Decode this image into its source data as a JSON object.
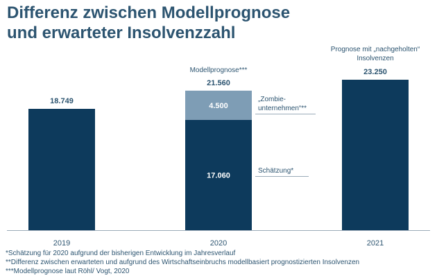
{
  "title_lines": [
    "Differenz zwischen Modellprognose",
    "und erwarteter Insolvenzzahl"
  ],
  "colors": {
    "dark": "#0d3a5c",
    "light": "#7e9db5",
    "text": "#2c5470",
    "axis": "#9aaab8"
  },
  "chart_data": {
    "type": "bar",
    "stacked": true,
    "categories": [
      "2019",
      "2020",
      "2021"
    ],
    "series": [
      {
        "name": "Schätzung*",
        "values": [
          18749,
          17060,
          23250
        ]
      },
      {
        "name": "„Zombie-unternehmen“**",
        "values": [
          null,
          4500,
          null
        ]
      }
    ],
    "value_labels": [
      {
        "category": "2019",
        "text": "18.749",
        "position": "top"
      },
      {
        "category": "2020",
        "text": "21.560",
        "position": "top"
      },
      {
        "category": "2020",
        "text": "4.500",
        "position": "center-segment-2"
      },
      {
        "category": "2020",
        "text": "17.060",
        "position": "center-segment-1"
      },
      {
        "category": "2021",
        "text": "23.250",
        "position": "top"
      }
    ],
    "annotations": [
      {
        "category": "2020",
        "text": "Modellprognose***",
        "position": "above"
      },
      {
        "category": "2021",
        "lines": [
          "Prognose mit „nachgeholten“",
          "Insolvenzen"
        ],
        "position": "above"
      },
      {
        "category": "2020",
        "lines": [
          "„Zombie-",
          "unternehmen“**"
        ],
        "position": "right-of-segment-2"
      },
      {
        "category": "2020",
        "text": "Schätzung*",
        "position": "right-of-segment-1"
      }
    ],
    "ylim": [
      0,
      23250
    ],
    "xlabel": "",
    "ylabel": "",
    "grid": false
  },
  "footnotes": [
    "*Schätzung für 2020 aufgrund der bisherigen Entwicklung im Jahresverlauf",
    "**Differenz zwischen erwarteten und aufgrund des Wirtschaftseinbruchs modellbasiert prognostizierten Insolvenzen",
    "***Modellprognose laut Röhl/ Vogt, 2020"
  ]
}
